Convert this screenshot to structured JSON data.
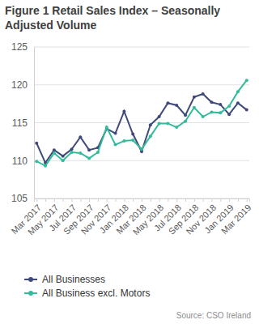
{
  "chart_data": {
    "type": "line",
    "title": "Figure 1 Retail Sales Index – Seasonally Adjusted Volume",
    "categories": [
      "Mar 2017",
      null,
      "May 2017",
      null,
      "Jul 2017",
      null,
      "Sep 2017",
      null,
      "Nov 2017",
      null,
      "Jan 2018",
      null,
      "Mar 2018",
      null,
      "May 2018",
      null,
      "Jul 2018",
      null,
      "Sep 2018",
      null,
      "Nov 2018",
      null,
      "Jan 2019",
      null,
      "Mar 2019"
    ],
    "series": [
      {
        "name": "All Businesses",
        "color": "#3f4a7b",
        "marker": "circle",
        "values": [
          112.3,
          109.7,
          111.4,
          110.6,
          111.5,
          113.1,
          111.4,
          111.7,
          114.2,
          113.6,
          116.5,
          113.5,
          111.2,
          114.7,
          115.8,
          117.6,
          117.3,
          116.0,
          118.4,
          118.8,
          117.7,
          117.4,
          116.1,
          117.6,
          116.7
        ]
      },
      {
        "name": "All Business excl. Motors",
        "color": "#33bb9c",
        "marker": "circle",
        "values": [
          109.9,
          109.3,
          111.0,
          110.0,
          111.1,
          111.0,
          110.3,
          111.1,
          114.4,
          112.1,
          112.6,
          112.7,
          111.5,
          113.2,
          114.9,
          114.9,
          114.4,
          115.2,
          117.0,
          115.8,
          116.4,
          116.3,
          117.2,
          119.1,
          120.6
        ]
      }
    ],
    "ylim": [
      105,
      125
    ],
    "yticks": [
      105,
      110,
      115,
      120,
      125
    ],
    "grid": true,
    "legend": "bottom",
    "annotations": [
      "Source: CSO Ireland"
    ]
  }
}
